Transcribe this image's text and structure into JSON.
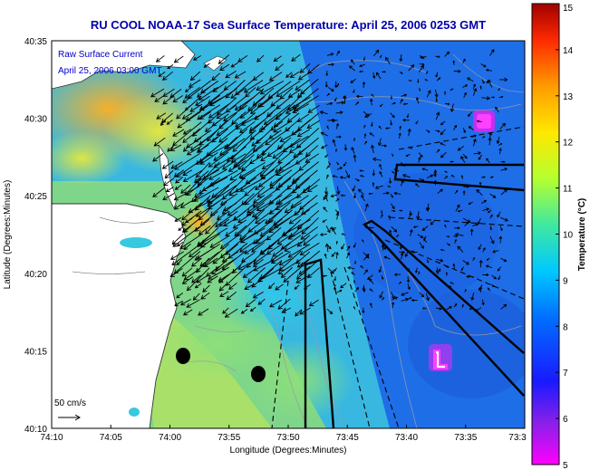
{
  "title": "RU COOL  NOAA-17  Sea Surface Temperature:  April 25, 2006 0253 GMT",
  "overlay": {
    "line1": "Raw Surface Current",
    "line2": "April 25, 2006 03:00 GMT"
  },
  "scale": {
    "label": "50 cm/s"
  },
  "axes": {
    "xlabel": "Longitude (Degrees:Minutes)",
    "ylabel": "Latitude (Degrees:Minutes)",
    "xticks": [
      "74:10",
      "74:05",
      "74:00",
      "73:55",
      "73:50",
      "73:45",
      "73:40",
      "73:35",
      "73:3"
    ],
    "yticks": [
      "40:35",
      "40:30",
      "40:25",
      "40:20",
      "40:15",
      "40:10"
    ]
  },
  "colorbar": {
    "label": "Temperature (°C)",
    "ticks": [
      "15",
      "14",
      "13",
      "12",
      "11",
      "10",
      "9",
      "8",
      "7",
      "6",
      "5"
    ],
    "range": [
      5,
      15
    ]
  },
  "colors": {
    "title": "#0000aa",
    "land": "#ffffff",
    "water_cold": "#1e6ee8",
    "water_warm": "#ffd21e",
    "vectors": "#000000"
  }
}
